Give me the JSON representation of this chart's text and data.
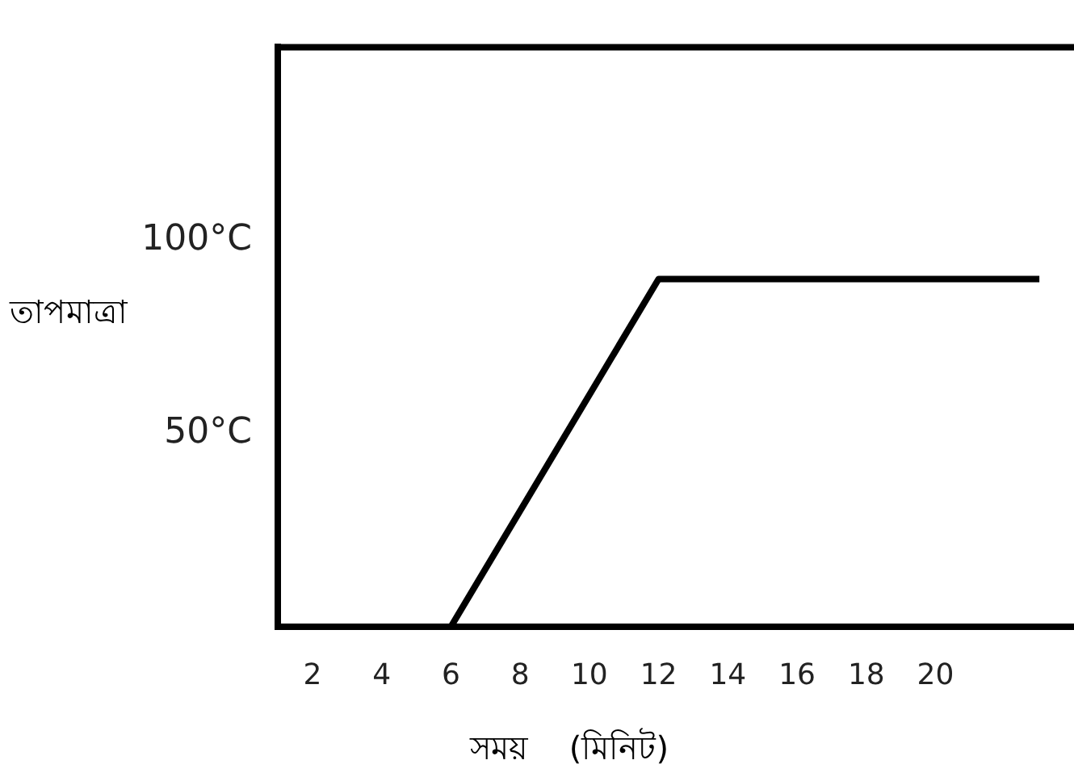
{
  "chart_data": {
    "type": "line",
    "xlabel": "সময়    (মিনিট)",
    "ylabel": "তাপমাত্রা",
    "x": [
      6,
      12,
      23
    ],
    "series": [
      {
        "color": "#000000",
        "values": [
          0,
          90,
          90
        ]
      }
    ],
    "xlim": [
      1,
      24
    ],
    "xticks": [
      2,
      4,
      6,
      8,
      10,
      12,
      14,
      16,
      18,
      20
    ],
    "ylim": [
      0,
      150
    ],
    "yticks": [
      {
        "value": 50,
        "label": "50°C"
      },
      {
        "value": 100,
        "label": "100°C"
      }
    ],
    "grid": false,
    "legend": false,
    "marker": "none",
    "line_style": "solid"
  }
}
